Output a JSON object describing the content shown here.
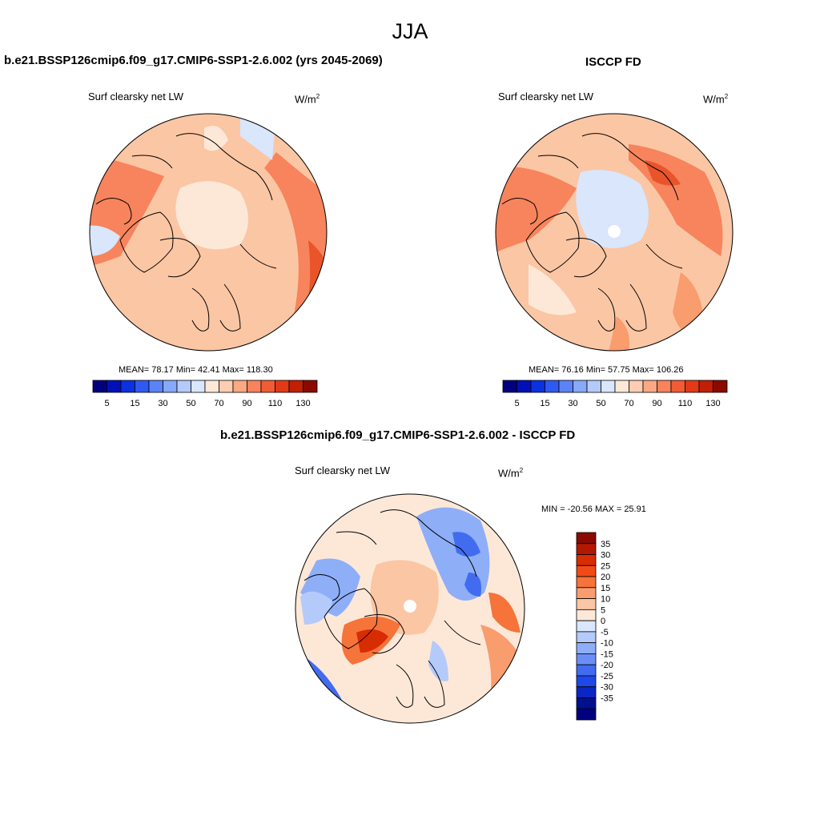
{
  "title": "JJA",
  "panels": [
    {
      "heading": "b.e21.BSSP126cmip6.f09_g17.CMIP6-SSP1-2.6.002 (yrs 2045-2069)",
      "variable": "Surf clearsky net LW",
      "units_base": "W/m",
      "units_exp": "2",
      "stats": "MEAN=  78.17  Min=  42.41  Max= 118.30",
      "map": "north-polar-stereographic"
    },
    {
      "heading": "ISCCP FD",
      "variable": "Surf clearsky net LW",
      "units_base": "W/m",
      "units_exp": "2",
      "stats": "MEAN=  76.16  Min=  57.75  Max= 106.26",
      "map": "north-polar-stereographic"
    },
    {
      "heading": "b.e21.BSSP126cmip6.f09_g17.CMIP6-SSP1-2.6.002 - ISCCP FD",
      "variable": "Surf clearsky net LW",
      "units_base": "W/m",
      "units_exp": "2",
      "stats": "MIN = -20.56 MAX =  25.91",
      "map": "north-polar-stereographic"
    }
  ],
  "colorbar_abs": {
    "orientation": "horizontal",
    "colors": [
      "#00007f",
      "#0010b8",
      "#0a32e0",
      "#2f5af2",
      "#5a84f6",
      "#87a9f8",
      "#b4cafb",
      "#d9e6fc",
      "#fde8d8",
      "#fccdb0",
      "#fba883",
      "#f8835c",
      "#f25c35",
      "#e23a17",
      "#c21f05",
      "#8a0a00"
    ],
    "tick_labels": [
      "5",
      "15",
      "30",
      "50",
      "70",
      "90",
      "110",
      "130"
    ],
    "tick_boundaries": [
      1,
      3,
      5,
      7,
      9,
      11,
      13,
      15
    ]
  },
  "colorbar_diff": {
    "orientation": "vertical",
    "colors": [
      "#8a0a00",
      "#b41800",
      "#d82c04",
      "#f24a16",
      "#f6733a",
      "#f99c6e",
      "#fbc6a4",
      "#fde8d8",
      "#d9e6fc",
      "#b4cafb",
      "#8eaef8",
      "#6a8ef6",
      "#426cf0",
      "#1e48e8",
      "#0a26c6",
      "#00108e",
      "#00007f"
    ],
    "tick_labels": [
      "35",
      "30",
      "25",
      "20",
      "15",
      "10",
      "5",
      "0",
      "-5",
      "-10",
      "-15",
      "-20",
      "-25",
      "-30",
      "-35"
    ]
  }
}
